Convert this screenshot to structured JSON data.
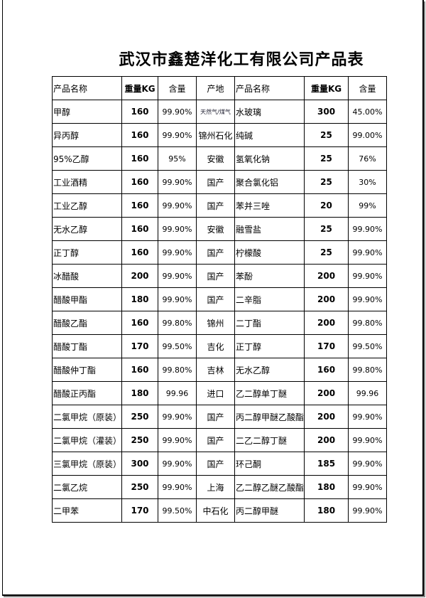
{
  "title": "武汉市鑫楚洋化工有限公司产品表",
  "headers": [
    "产品名称",
    "重量KG",
    "含量",
    "产地",
    "产品名称",
    "重量KG",
    "含量"
  ],
  "rows": [
    [
      "甲醇",
      "160",
      "99.90%",
      "天然气/煤气",
      "水玻璃",
      "300",
      "45.00%"
    ],
    [
      "异丙醇",
      "160",
      "99.90%",
      "锦州石化",
      "纯碱",
      "25",
      "99.00%"
    ],
    [
      "95%乙醇",
      "160",
      "95%",
      "安徽",
      "氢氧化钠",
      "25",
      "76%"
    ],
    [
      "工业酒精",
      "160",
      "99.90%",
      "国产",
      " 聚合氯化铝",
      "25",
      "30%"
    ],
    [
      "工业乙醇",
      "160",
      "99.90%",
      "国产",
      "苯并三唑",
      "20",
      "99%"
    ],
    [
      "无水乙醇",
      "160",
      "99.90%",
      "安徽",
      "融雪盐",
      "25",
      "99.90%"
    ],
    [
      "正丁醇",
      "160",
      "99.90%",
      "国产",
      "柠檬酸",
      "25",
      "99.90%"
    ],
    [
      "冰醋酸",
      "200",
      "99.90%",
      "国产",
      "苯酚",
      "200",
      "99.90%"
    ],
    [
      "醋酸甲酯",
      "180",
      "99.90%",
      "国产",
      "二辛脂",
      "200",
      "99.90%"
    ],
    [
      "醋酸乙酯",
      "160",
      "99.80%",
      "锦州",
      "二丁酯",
      "200",
      "99.80%"
    ],
    [
      "醋酸丁酯",
      "170",
      "99.50%",
      "吉化",
      "正丁醇",
      "170",
      "99.50%"
    ],
    [
      "醋酸仲丁酯",
      "160",
      "99.80%",
      "吉林",
      "无水乙醇",
      "160",
      "99.80%"
    ],
    [
      "醋酸正丙酯",
      "180",
      "99.96",
      "进口",
      "乙二醇单丁醚",
      "200",
      "99.96"
    ],
    [
      "二氯甲烷（原装）",
      "250",
      "99.90%",
      "国产",
      "丙二醇甲醚乙酸酯",
      "200",
      "99.90%"
    ],
    [
      "二氯甲烷（灌装）",
      "250",
      "99.90%",
      "国产",
      "二乙二醇丁醚",
      "200",
      "99.90%"
    ],
    [
      "三氯甲烷（原装）",
      "300",
      "99.90%",
      "国产",
      "环己酮",
      "185",
      "99.90%"
    ],
    [
      "二氯乙烷",
      "250",
      "99.90%",
      "上海",
      "乙二醇乙醚乙酸酯",
      "180",
      "99.90%"
    ],
    [
      "二甲苯",
      "170",
      "99.50%",
      "中石化",
      " 丙二醇甲醚",
      "180",
      "99.90%"
    ]
  ]
}
